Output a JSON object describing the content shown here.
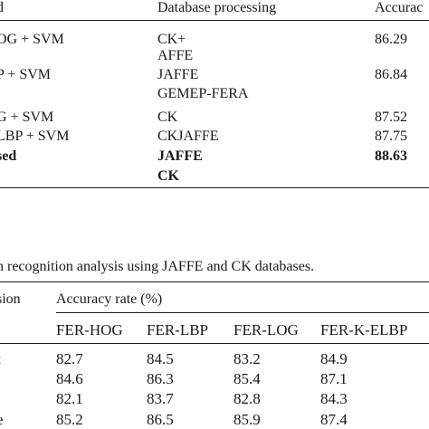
{
  "table1": {
    "header": {
      "method": "d",
      "database": "Database processing",
      "accuracy": "Accurac"
    },
    "rows": [
      {
        "method": "OG + SVM",
        "database": "CK+",
        "accuracy": "86.29"
      },
      {
        "method": "",
        "database": "AFFE",
        "accuracy": ""
      },
      {
        "method": "P + SVM",
        "database": "JAFFE",
        "accuracy": "86.84"
      },
      {
        "method": "",
        "database": "GEMEP-FERA",
        "accuracy": ""
      },
      {
        "method": "G + SVM",
        "database": "CK",
        "accuracy": "87.52"
      },
      {
        "method": "LBP + SVM",
        "database": "CKJAFFE",
        "accuracy": "87.75"
      },
      {
        "method": "sed",
        "database": "JAFFE",
        "accuracy": "88.63"
      },
      {
        "method": "",
        "database": "CK",
        "accuracy": ""
      }
    ]
  },
  "table2": {
    "caption": "n recognition analysis using JAFFE and CK databases.",
    "header_left": "sion",
    "header_group": "Accuracy rate (%)",
    "columns": [
      "FER-HOG",
      "FER-LBP",
      "FER-LOG",
      "FER-K-ELBP"
    ],
    "rows": [
      {
        "label": "t",
        "values": [
          "82.7",
          "84.5",
          "83.2",
          "84.9"
        ]
      },
      {
        "label": "",
        "values": [
          "84.6",
          "86.3",
          "85.4",
          "87.1"
        ]
      },
      {
        "label": "",
        "values": [
          "82.1",
          "83.7",
          "82.8",
          "84.3"
        ]
      },
      {
        "label": "e",
        "values": [
          "85.2",
          "86.5",
          "85.9",
          "87.4"
        ]
      }
    ]
  }
}
